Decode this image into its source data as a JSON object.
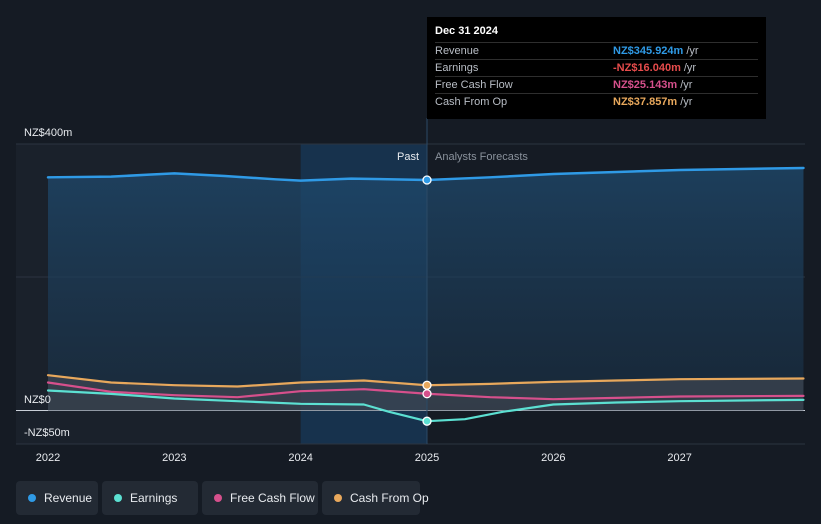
{
  "chart_data": {
    "type": "line",
    "y_axis_labels": {
      "top": "NZ$400m",
      "zero": "NZ$0",
      "bottom": "-NZ$50m"
    },
    "ylim": [
      -50,
      400
    ],
    "x_ticks": [
      {
        "label": "2022",
        "value": 2022.0
      },
      {
        "label": "2023",
        "value": 2023.0
      },
      {
        "label": "2024",
        "value": 2024.0
      },
      {
        "label": "2025",
        "value": 2025.0
      },
      {
        "label": "2026",
        "value": 2026.0
      },
      {
        "label": "2027",
        "value": 2027.0
      }
    ],
    "xlim": [
      2021.7,
      2027.98
    ],
    "past_label": "Past",
    "forecast_label": "Analysts Forecasts",
    "divider_x": 2025.0,
    "highlight_range": [
      2024.0,
      2025.0
    ],
    "series": [
      {
        "name": "Revenue",
        "color": "#2f9ae6",
        "points": [
          [
            2022.0,
            350
          ],
          [
            2022.5,
            351
          ],
          [
            2022.8,
            354
          ],
          [
            2023.0,
            356
          ],
          [
            2023.4,
            352
          ],
          [
            2023.8,
            347
          ],
          [
            2024.0,
            345
          ],
          [
            2024.4,
            348
          ],
          [
            2025.0,
            346
          ],
          [
            2025.5,
            350
          ],
          [
            2026.0,
            355
          ],
          [
            2026.5,
            358
          ],
          [
            2027.0,
            361
          ],
          [
            2027.98,
            364
          ]
        ]
      },
      {
        "name": "Earnings",
        "color": "#5ce0d2",
        "points": [
          [
            2022.0,
            30
          ],
          [
            2022.5,
            25
          ],
          [
            2023.0,
            18
          ],
          [
            2023.5,
            14
          ],
          [
            2024.0,
            10
          ],
          [
            2024.5,
            9
          ],
          [
            2024.7,
            -2
          ],
          [
            2025.0,
            -16.04
          ],
          [
            2025.3,
            -13
          ],
          [
            2025.6,
            -2
          ],
          [
            2026.0,
            9
          ],
          [
            2026.5,
            12
          ],
          [
            2027.0,
            14
          ],
          [
            2027.98,
            16
          ]
        ]
      },
      {
        "name": "Free Cash Flow",
        "color": "#d6508c",
        "points": [
          [
            2022.0,
            42
          ],
          [
            2022.5,
            28
          ],
          [
            2023.0,
            23
          ],
          [
            2023.5,
            20
          ],
          [
            2024.0,
            29
          ],
          [
            2024.5,
            32
          ],
          [
            2025.0,
            25.143
          ],
          [
            2025.5,
            20
          ],
          [
            2026.0,
            17
          ],
          [
            2026.5,
            19
          ],
          [
            2027.0,
            21
          ],
          [
            2027.98,
            22
          ]
        ]
      },
      {
        "name": "Cash From Op",
        "color": "#e8a85c",
        "points": [
          [
            2022.0,
            53
          ],
          [
            2022.5,
            42
          ],
          [
            2023.0,
            38
          ],
          [
            2023.5,
            36
          ],
          [
            2024.0,
            42
          ],
          [
            2024.5,
            45
          ],
          [
            2025.0,
            37.857
          ],
          [
            2025.5,
            40
          ],
          [
            2026.0,
            43
          ],
          [
            2026.5,
            45
          ],
          [
            2027.0,
            47
          ],
          [
            2027.98,
            48
          ]
        ]
      }
    ]
  },
  "tooltip": {
    "date": "Dec 31 2024",
    "rows": [
      {
        "name": "Revenue",
        "value": "NZ$345.924m",
        "unit": "/yr",
        "color": "#2f9ae6"
      },
      {
        "name": "Earnings",
        "value": "-NZ$16.040m",
        "unit": "/yr",
        "color": "#e74c4c"
      },
      {
        "name": "Free Cash Flow",
        "value": "NZ$25.143m",
        "unit": "/yr",
        "color": "#d6508c"
      },
      {
        "name": "Cash From Op",
        "value": "NZ$37.857m",
        "unit": "/yr",
        "color": "#e8a85c"
      }
    ]
  },
  "legend": [
    {
      "name": "Revenue",
      "color": "#2f9ae6"
    },
    {
      "name": "Earnings",
      "color": "#5ce0d2"
    },
    {
      "name": "Free Cash Flow",
      "color": "#d6508c"
    },
    {
      "name": "Cash From Op",
      "color": "#e8a85c"
    }
  ]
}
